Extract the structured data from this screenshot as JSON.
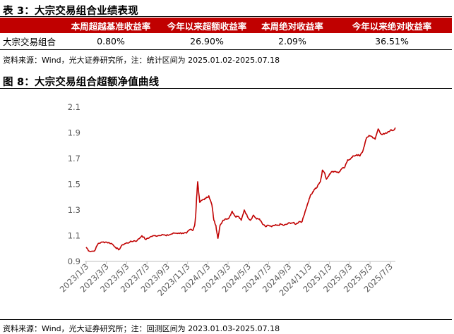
{
  "table_section": {
    "title": "表 3：大宗交易组合业绩表现",
    "headers": [
      "",
      "本周超越基准收益率",
      "今年以来超额收益率",
      "本周绝对收益率",
      "今年以来绝对收益率"
    ],
    "row": [
      "大宗交易组合",
      "0.80%",
      "26.90%",
      "2.09%",
      "36.51%"
    ],
    "source": "资料来源：Wind，光大证券研究所，注：统计区间为 2025.01.02-2025.07.18"
  },
  "figure_section": {
    "title": "图 8：大宗交易组合超额净值曲线",
    "source": "资料来源：Wind，光大证券研究所；注：回测区间为 2023.01.03-2025.07.18"
  },
  "chart_data": {
    "type": "line",
    "title": "",
    "xlabel": "",
    "ylabel": "",
    "ylim": [
      0.9,
      2.1
    ],
    "yticks": [
      "0.9",
      "1.1",
      "1.3",
      "1.5",
      "1.7",
      "1.9",
      "2.1"
    ],
    "xticks": [
      "2023/1/3",
      "2023/3/3",
      "2023/5/3",
      "2023/7/3",
      "2023/9/3",
      "2023/11/3",
      "2024/1/3",
      "2024/3/3",
      "2024/5/3",
      "2024/7/3",
      "2024/9/3",
      "2024/11/3",
      "2025/1/3",
      "2025/3/3",
      "2025/5/3",
      "2025/7/3"
    ],
    "grid": false,
    "legend": "none",
    "line_color": "#c00000",
    "series": [
      {
        "x_months": [
          0,
          0.3,
          0.8,
          1.2,
          1.6,
          2.0,
          2.5,
          2.9,
          3.2,
          3.6,
          3.9,
          4.3,
          4.7,
          5.0,
          5.5,
          5.9,
          6.3,
          6.7,
          7.1,
          7.5,
          7.9,
          8.3,
          8.7,
          9.1,
          9.5,
          9.9,
          10.3,
          10.5,
          10.7,
          10.8,
          10.9,
          11.0,
          11.2,
          11.5,
          11.8,
          12.1,
          12.4,
          12.6,
          12.8,
          12.9,
          13.0,
          13.2,
          13.5,
          13.8,
          14.1,
          14.4,
          14.7,
          15.0,
          15.3,
          15.6,
          15.9,
          16.2,
          16.5,
          16.8,
          17.1,
          17.4,
          17.7,
          18.0,
          18.3,
          18.6,
          18.9,
          19.2,
          19.5,
          19.8,
          20.1,
          20.4,
          20.7,
          21.0,
          21.3,
          21.6,
          21.9,
          22.1,
          22.3,
          22.5,
          22.7,
          22.9,
          23.1,
          23.3,
          23.5,
          23.7,
          24.0,
          24.3,
          24.6,
          24.9,
          25.2,
          25.5,
          25.8,
          26.1,
          26.4,
          26.7,
          27.0,
          27.3,
          27.6,
          27.9,
          28.2,
          28.5,
          28.8,
          29.1,
          29.4,
          29.7,
          30.0,
          30.3,
          30.5
        ],
        "values": [
          1.01,
          0.98,
          0.98,
          1.04,
          1.05,
          1.05,
          1.04,
          1.01,
          0.99,
          1.03,
          1.04,
          1.05,
          1.06,
          1.06,
          1.1,
          1.07,
          1.09,
          1.1,
          1.1,
          1.11,
          1.1,
          1.11,
          1.12,
          1.12,
          1.12,
          1.12,
          1.15,
          1.14,
          1.18,
          1.25,
          1.4,
          1.52,
          1.36,
          1.38,
          1.39,
          1.41,
          1.34,
          1.22,
          1.18,
          1.12,
          1.08,
          1.18,
          1.22,
          1.23,
          1.24,
          1.29,
          1.25,
          1.25,
          1.22,
          1.3,
          1.25,
          1.22,
          1.26,
          1.23,
          1.23,
          1.19,
          1.17,
          1.18,
          1.17,
          1.18,
          1.18,
          1.19,
          1.18,
          1.19,
          1.2,
          1.2,
          1.19,
          1.21,
          1.21,
          1.29,
          1.36,
          1.41,
          1.43,
          1.46,
          1.47,
          1.5,
          1.52,
          1.61,
          1.59,
          1.54,
          1.58,
          1.6,
          1.6,
          1.59,
          1.62,
          1.63,
          1.69,
          1.7,
          1.72,
          1.73,
          1.72,
          1.76,
          1.85,
          1.88,
          1.87,
          1.85,
          1.93,
          1.89,
          1.89,
          1.9,
          1.92,
          1.92,
          1.94
        ]
      }
    ]
  }
}
